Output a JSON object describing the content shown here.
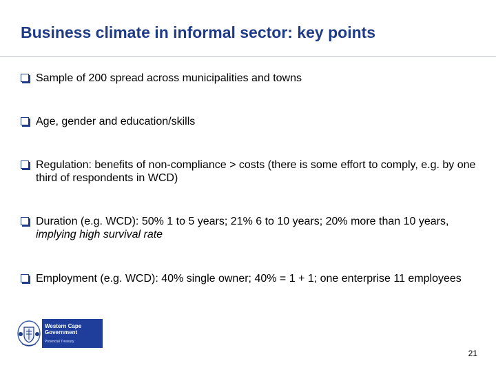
{
  "slide": {
    "title": "Business climate in informal sector: key points",
    "page_number": "21",
    "accent_color": "#1f3b86"
  },
  "bullets": [
    {
      "icon": "checkbox-bullet-icon",
      "segments": [
        {
          "text": "Sample of 200 spread across municipalities and towns",
          "italic": false
        }
      ]
    },
    {
      "icon": "checkbox-bullet-icon",
      "segments": [
        {
          "text": "Age, gender and education/skills",
          "italic": false
        }
      ]
    },
    {
      "icon": "checkbox-bullet-icon",
      "segments": [
        {
          "text": "Regulation: benefits of non-compliance  > costs (there is some effort to comply, e.g. by one third of respondents in WCD)",
          "italic": false
        }
      ]
    },
    {
      "icon": "checkbox-bullet-icon",
      "segments": [
        {
          "text": "Duration (e.g. WCD): 50% 1 to 5 years; 21%  6 to 10 years; 20% more than 10 years, ",
          "italic": false
        },
        {
          "text": "implying high survival rate",
          "italic": true
        }
      ]
    },
    {
      "icon": "checkbox-bullet-icon",
      "segments": [
        {
          "text": "Employment (e.g. WCD): 40% single owner; 40% = 1 + 1; one enterprise 11 employees",
          "italic": false
        }
      ]
    }
  ],
  "logo": {
    "line1": "Western Cape",
    "line2": "Government",
    "line3": "Provincial Treasury",
    "panel_color": "#1f3e9c",
    "crest_icon": "coat-of-arms-icon"
  }
}
